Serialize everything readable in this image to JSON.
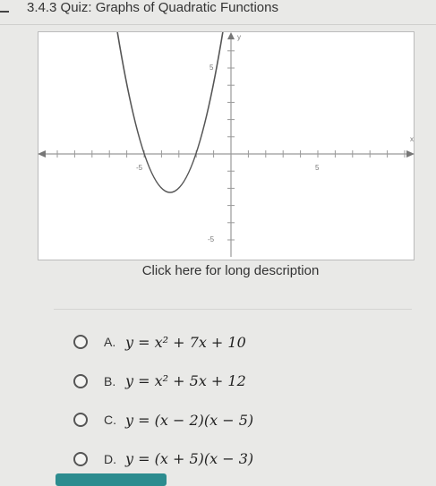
{
  "header": {
    "title": "3.4.3 Quiz: Graphs of Quadratic Functions"
  },
  "graph": {
    "x_label": "x",
    "y_label": "y",
    "x_tick_labels": [
      "-5",
      "5"
    ],
    "y_tick_labels": [
      "5",
      "-5"
    ]
  },
  "link": "Click here for long description",
  "options": [
    {
      "letter": "A.",
      "equation": "y = x² + 7x + 10"
    },
    {
      "letter": "B.",
      "equation": "y = x² + 5x + 12"
    },
    {
      "letter": "C.",
      "equation": "y = (x − 2)(x − 5)"
    },
    {
      "letter": "D.",
      "equation": "y = (x + 5)(x − 3)"
    }
  ]
}
